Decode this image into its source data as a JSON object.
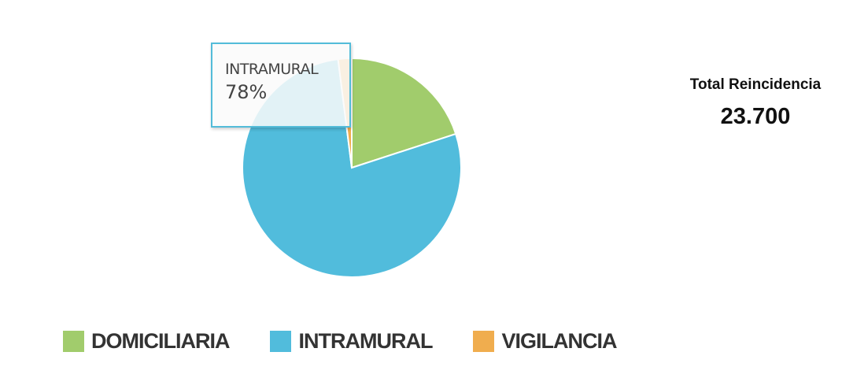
{
  "chart_data": {
    "type": "pie",
    "categories": [
      "DOMICILIARIA",
      "INTRAMURAL",
      "VIGILANCIA"
    ],
    "values": [
      20,
      78,
      2
    ],
    "colors": [
      "#a1cc6c",
      "#51bcdc",
      "#f0ad4e"
    ],
    "legend_position": "bottom",
    "tooltip": {
      "label": "INTRAMURAL",
      "value": "78%"
    }
  },
  "summary": {
    "label": "Total Reincidencia",
    "value": "23.700"
  }
}
